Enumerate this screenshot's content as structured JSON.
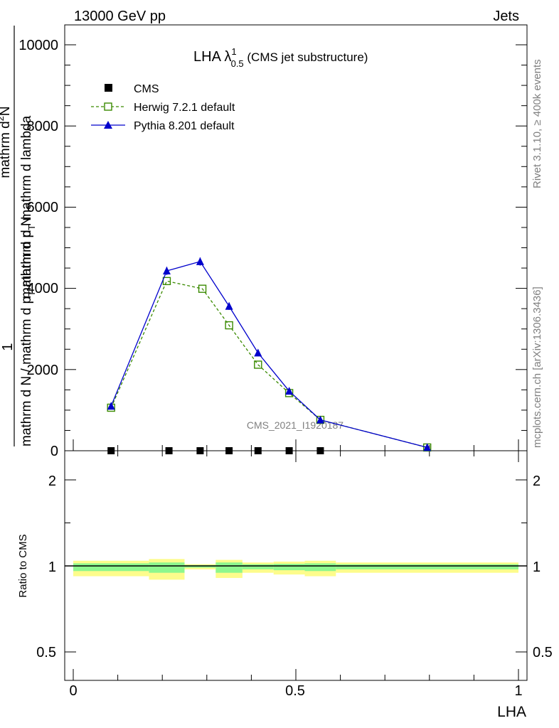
{
  "header": {
    "process": "13000 GeV pp",
    "category": "Jets",
    "title_main": "LHA λ",
    "title_sup": "1",
    "title_sub": "0.5",
    "title_rest": " (CMS jet substructure)",
    "side_rivet": "Rivet 3.1.10, ≥ 400k events",
    "side_mcplots": "mcplots.cern.ch [arXiv:1306.3436]",
    "watermark": "CMS_2021_I1920187"
  },
  "chart_data": [
    {
      "type": "line",
      "title": "LHA λ^1_0.5 (CMS jet substructure)",
      "xlabel": "LHA",
      "ylabel_parts": [
        "1",
        "mathrm d N / mathrm d p",
        "T",
        " mathrm d N",
        "mathrm d",
        "2",
        "N",
        "mathrm d p",
        "T",
        " mathrm d lambda"
      ],
      "xlim": [
        -0.02,
        1.02
      ],
      "ylim": [
        0,
        10500
      ],
      "yticks": [
        0,
        2000,
        4000,
        6000,
        8000,
        10000
      ],
      "ytick_labels": [
        "0",
        "2000",
        "4000",
        "6000",
        "8000",
        "10000"
      ],
      "legend_position": "top-left",
      "legend": [
        "CMS",
        "Herwig 7.2.1 default",
        "Pythia 8.201 default"
      ],
      "series": [
        {
          "name": "CMS",
          "marker": "square-filled",
          "color": "#000000",
          "x": [
            0.085,
            0.215,
            0.285,
            0.35,
            0.415,
            0.485,
            0.555
          ],
          "y": [
            0,
            0,
            0,
            0,
            0,
            0,
            0
          ]
        },
        {
          "name": "Herwig 7.2.1 default",
          "marker": "square-open",
          "line": "dashed",
          "color": "#3a8a00",
          "x": [
            0.085,
            0.21,
            0.29,
            0.35,
            0.415,
            0.485,
            0.555,
            0.795
          ],
          "y": [
            1060,
            4180,
            3990,
            3090,
            2120,
            1420,
            760,
            80
          ]
        },
        {
          "name": "Pythia 8.201 default",
          "marker": "triangle-filled",
          "line": "solid",
          "color": "#0000cc",
          "x": [
            0.085,
            0.21,
            0.285,
            0.35,
            0.415,
            0.485,
            0.555,
            0.795
          ],
          "y": [
            1100,
            4430,
            4660,
            3560,
            2410,
            1470,
            760,
            80
          ],
          "yerr": [
            60,
            100,
            100,
            90,
            70,
            50,
            40,
            10
          ]
        }
      ]
    },
    {
      "type": "area",
      "xlabel": "LHA",
      "ylabel": "Ratio to CMS",
      "xlim": [
        -0.02,
        1.02
      ],
      "ylim": [
        0.35,
        2.3
      ],
      "yticks": [
        0.5,
        1,
        2
      ],
      "ytick_labels": [
        "0.5",
        "1",
        "2"
      ],
      "xticks": [
        0,
        0.5,
        1
      ],
      "xtick_labels": [
        "0",
        "0.5",
        "1"
      ],
      "bands": {
        "edges": [
          0.0,
          0.17,
          0.25,
          0.32,
          0.38,
          0.45,
          0.52,
          0.59,
          1.0
        ],
        "yellow_lo": [
          0.94,
          0.92,
          0.98,
          0.93,
          0.96,
          0.95,
          0.94,
          0.96
        ],
        "yellow_hi": [
          1.06,
          1.08,
          1.02,
          1.07,
          1.04,
          1.05,
          1.06,
          1.04
        ],
        "green_lo": [
          0.97,
          0.96,
          0.99,
          0.96,
          0.98,
          0.975,
          0.97,
          0.98
        ],
        "green_hi": [
          1.03,
          1.04,
          1.01,
          1.04,
          1.02,
          1.025,
          1.03,
          1.02
        ],
        "yellow_color": "#fdfc8c",
        "green_color": "#8ef78e"
      }
    }
  ]
}
